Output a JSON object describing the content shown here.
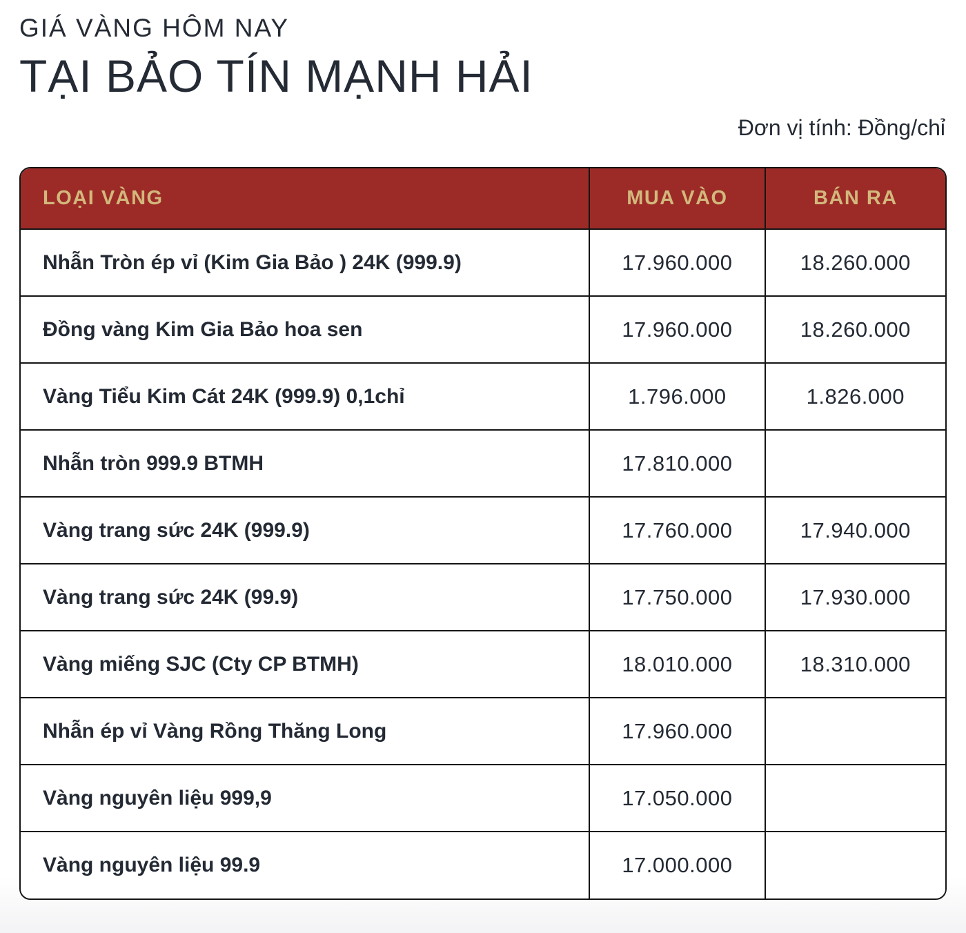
{
  "header": {
    "subtitle": "GIÁ VÀNG HÔM NAY",
    "title": "TẠI BẢO TÍN MẠNH HẢI",
    "unit_note": "Đơn vị tính: Đồng/chỉ"
  },
  "colors": {
    "table_header_bg": "#9c2b27",
    "table_header_text": "#d3b87d",
    "body_text": "#242a34",
    "table_border": "#141414"
  },
  "table": {
    "columns": [
      "LOẠI VÀNG",
      "MUA VÀO",
      "BÁN RA"
    ],
    "rows": [
      {
        "name": "Nhẫn Tròn ép vỉ (Kim Gia Bảo ) 24K (999.9)",
        "buy": "17.960.000",
        "sell": "18.260.000"
      },
      {
        "name": "Đồng vàng Kim Gia Bảo hoa sen",
        "buy": "17.960.000",
        "sell": "18.260.000"
      },
      {
        "name": "Vàng Tiểu Kim Cát 24K (999.9) 0,1chỉ",
        "buy": "1.796.000",
        "sell": "1.826.000"
      },
      {
        "name": "Nhẫn tròn 999.9 BTMH",
        "buy": "17.810.000",
        "sell": ""
      },
      {
        "name": "Vàng trang sức 24K (999.9)",
        "buy": "17.760.000",
        "sell": "17.940.000"
      },
      {
        "name": "Vàng trang sức 24K (99.9)",
        "buy": "17.750.000",
        "sell": "17.930.000"
      },
      {
        "name": "Vàng miếng SJC (Cty CP BTMH)",
        "buy": "18.010.000",
        "sell": "18.310.000"
      },
      {
        "name": "Nhẫn ép vỉ Vàng Rồng Thăng Long",
        "buy": "17.960.000",
        "sell": ""
      },
      {
        "name": "Vàng nguyên liệu 999,9",
        "buy": "17.050.000",
        "sell": ""
      },
      {
        "name": "Vàng nguyên liệu 99.9",
        "buy": "17.000.000",
        "sell": ""
      }
    ]
  },
  "chart_data": {
    "type": "table",
    "title": "GIÁ VÀNG HÔM NAY TẠI BẢO TÍN MẠNH HẢI",
    "unit": "Đồng/chỉ",
    "columns": [
      "LOẠI VÀNG",
      "MUA VÀO",
      "BÁN RA"
    ],
    "rows": [
      [
        "Nhẫn Tròn ép vỉ (Kim Gia Bảo ) 24K (999.9)",
        17960000,
        18260000
      ],
      [
        "Đồng vàng Kim Gia Bảo hoa sen",
        17960000,
        18260000
      ],
      [
        "Vàng Tiểu Kim Cát 24K (999.9) 0,1chỉ",
        1796000,
        1826000
      ],
      [
        "Nhẫn tròn 999.9 BTMH",
        17810000,
        null
      ],
      [
        "Vàng trang sức 24K (999.9)",
        17760000,
        17940000
      ],
      [
        "Vàng trang sức 24K (99.9)",
        17750000,
        17930000
      ],
      [
        "Vàng miếng SJC (Cty CP BTMH)",
        18010000,
        18310000
      ],
      [
        "Nhẫn ép vỉ Vàng Rồng Thăng Long",
        17960000,
        null
      ],
      [
        "Vàng nguyên liệu 999,9",
        17050000,
        null
      ],
      [
        "Vàng nguyên liệu 99.9",
        17000000,
        null
      ]
    ]
  }
}
